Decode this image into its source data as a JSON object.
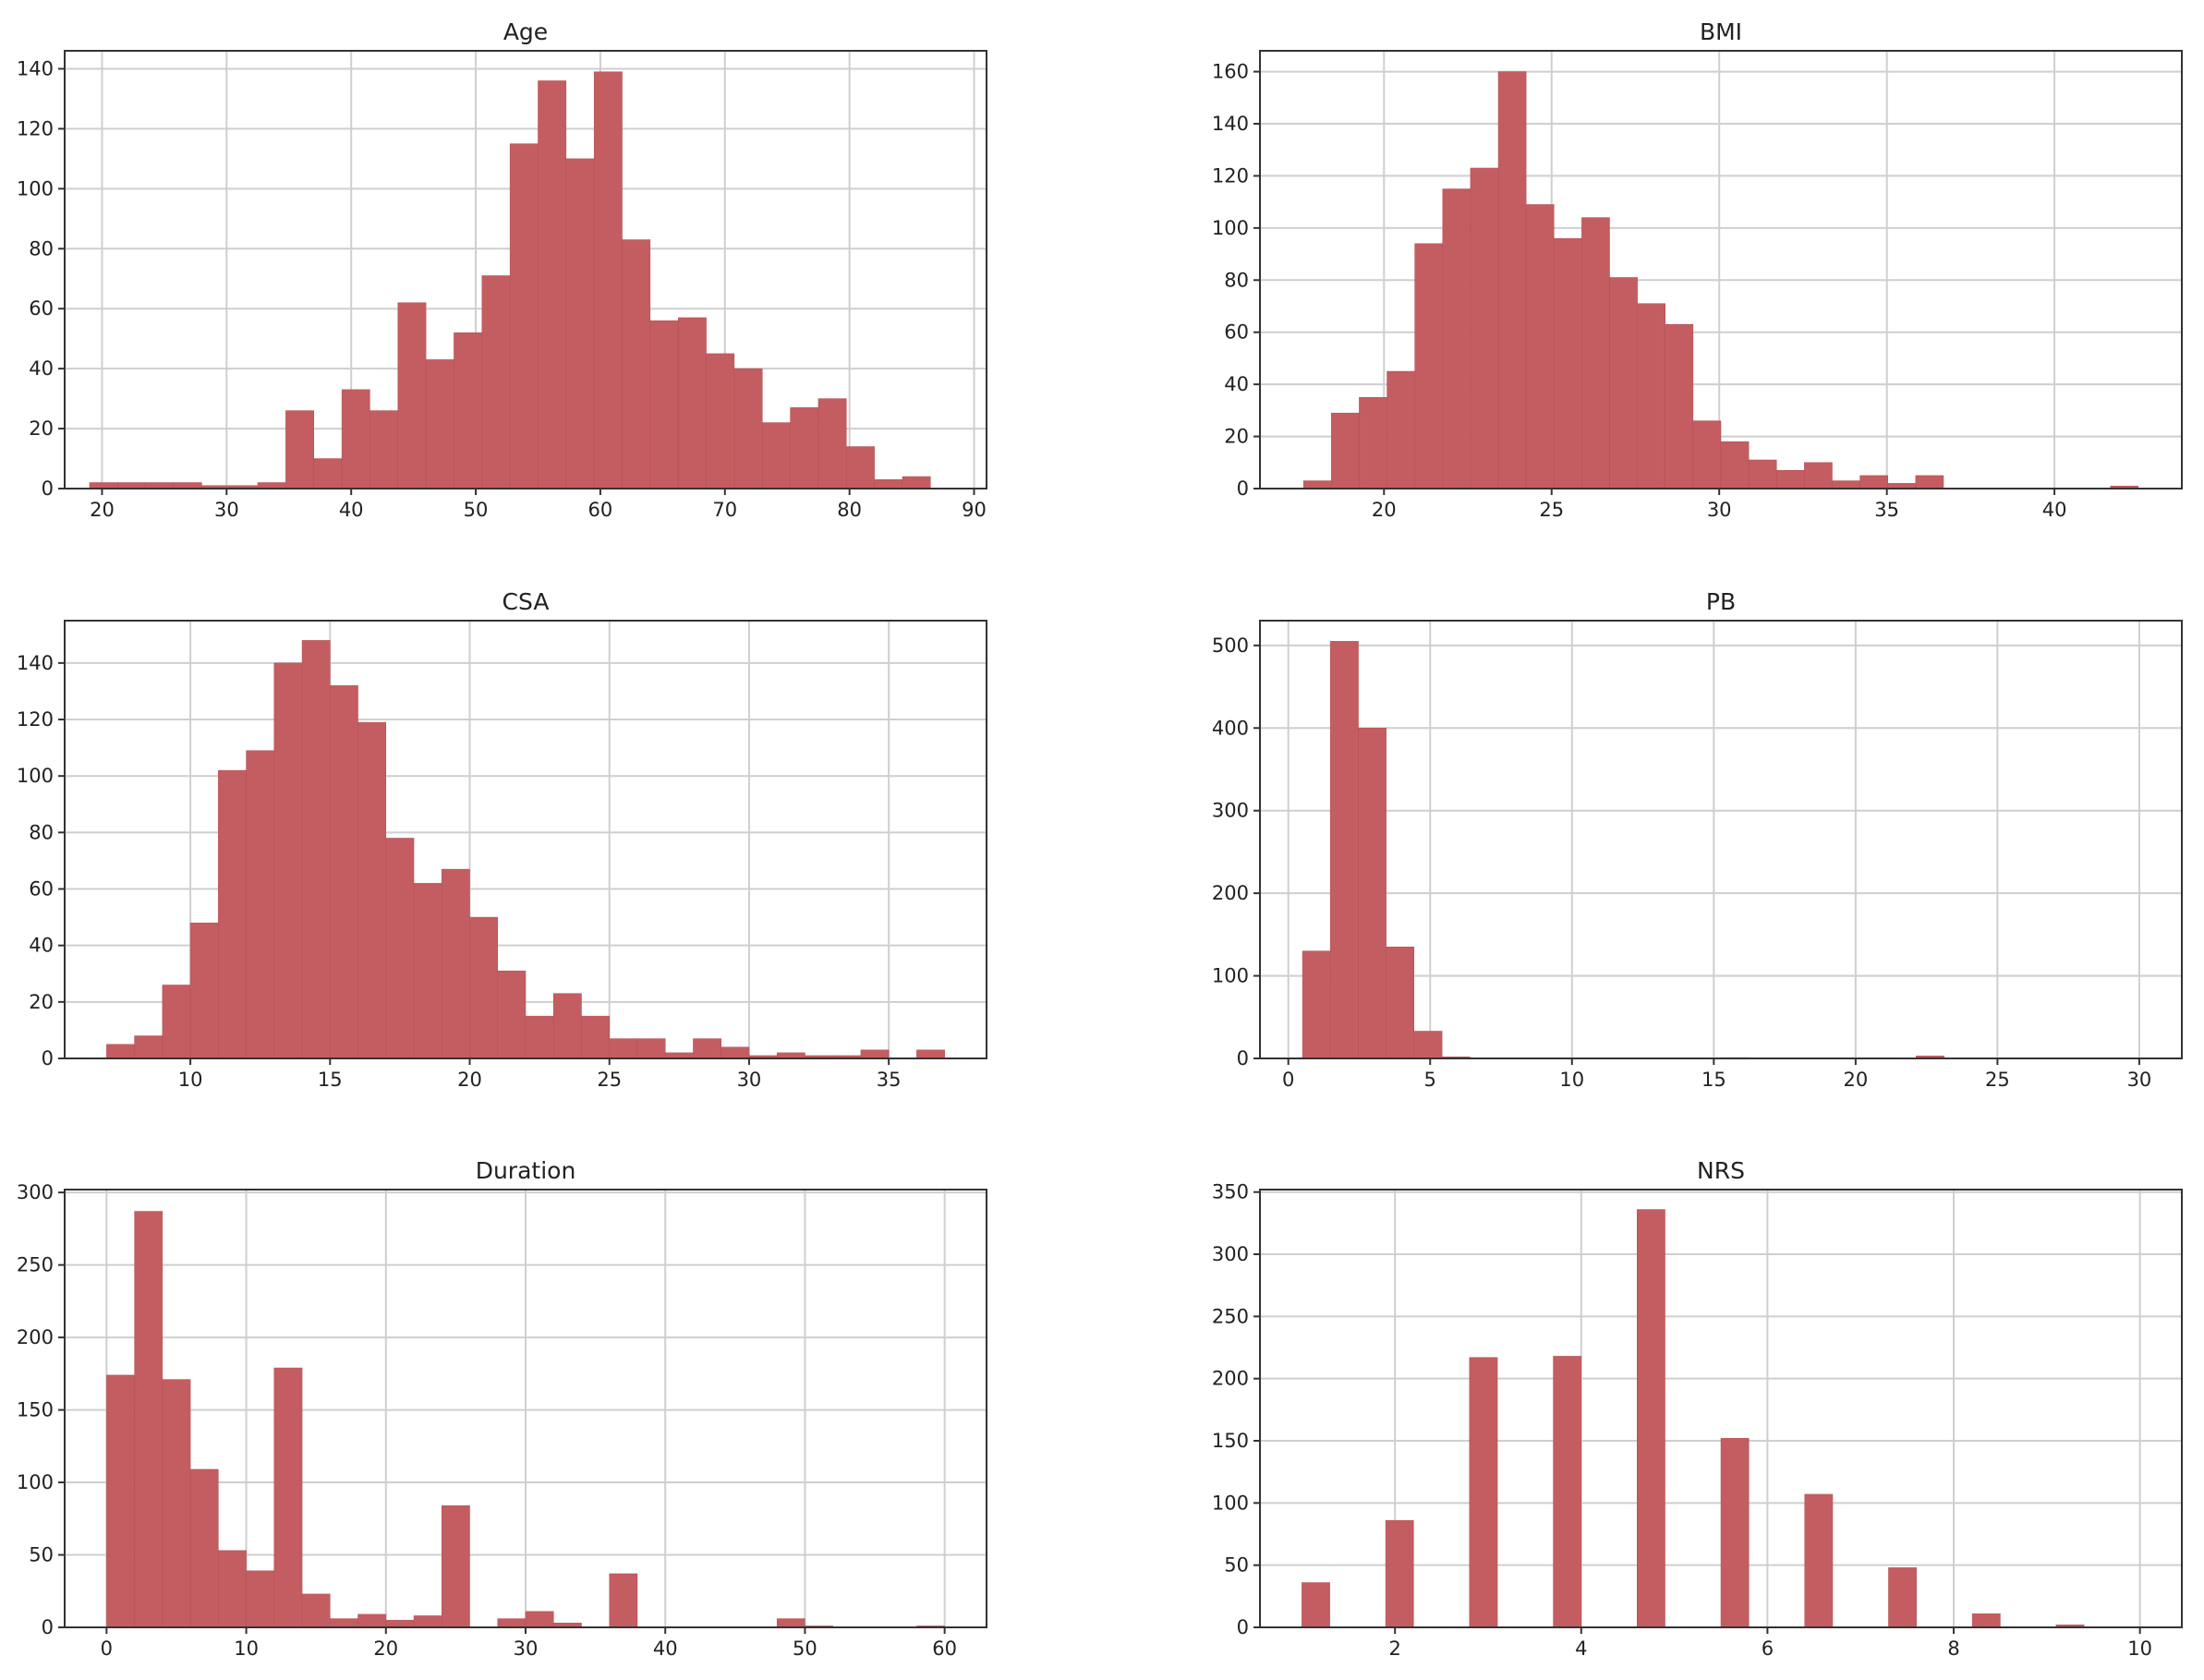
{
  "style": {
    "bar_color": "#c45d61",
    "bar_edge": "#b24e52",
    "grid_color": "#cfcfcf"
  },
  "chart_data": [
    {
      "type": "bar",
      "title": "Age",
      "bin_edges": [
        19,
        21.25,
        23.5,
        25.75,
        28,
        30.25,
        32.5,
        34.75,
        37,
        39.25,
        41.5,
        43.75,
        46,
        48.25,
        50.5,
        52.75,
        55,
        57.25,
        59.5,
        61.75,
        64,
        66.25,
        68.5,
        70.75,
        73,
        75.25,
        77.5,
        79.75,
        82,
        84.25,
        86.5
      ],
      "values": [
        2,
        2,
        2,
        2,
        1,
        1,
        2,
        26,
        10,
        33,
        26,
        62,
        43,
        52,
        71,
        115,
        136,
        110,
        139,
        83,
        56,
        57,
        45,
        40,
        22,
        27,
        30,
        14,
        3,
        4
      ],
      "xlim": [
        17,
        91
      ],
      "ylim": [
        0,
        146
      ],
      "xticks": [
        20,
        30,
        40,
        50,
        60,
        70,
        80,
        90
      ],
      "yticks": [
        0,
        20,
        40,
        60,
        80,
        100,
        120,
        140
      ],
      "grid": true
    },
    {
      "type": "bar",
      "title": "BMI",
      "bin_edges": [
        17.6,
        18.43,
        19.26,
        20.09,
        20.92,
        21.75,
        22.58,
        23.41,
        24.24,
        25.07,
        25.9,
        26.73,
        27.56,
        28.39,
        29.22,
        30.05,
        30.88,
        31.71,
        32.54,
        33.37,
        34.2,
        35.03,
        35.86,
        36.69,
        37.52,
        38.35,
        39.18,
        40.01,
        40.84,
        41.67,
        42.5
      ],
      "values": [
        3,
        29,
        35,
        45,
        94,
        115,
        123,
        160,
        109,
        96,
        104,
        81,
        71,
        63,
        26,
        18,
        11,
        7,
        10,
        3,
        5,
        2,
        5,
        0,
        0,
        0,
        0,
        0,
        0,
        1
      ],
      "xlim": [
        16.3,
        43.8
      ],
      "ylim": [
        0,
        168
      ],
      "xticks": [
        20,
        25,
        30,
        35,
        40
      ],
      "yticks": [
        0,
        20,
        40,
        60,
        80,
        100,
        120,
        140,
        160
      ],
      "grid": true
    },
    {
      "type": "bar",
      "title": "CSA",
      "bin_edges": [
        7,
        8,
        9,
        10,
        11,
        12,
        13,
        14,
        15,
        16,
        17,
        18,
        19,
        20,
        21,
        22,
        23,
        24,
        25,
        26,
        27,
        28,
        29,
        30,
        31,
        32,
        33,
        34,
        35,
        36,
        37
      ],
      "values": [
        5,
        8,
        26,
        48,
        102,
        109,
        140,
        148,
        132,
        119,
        78,
        62,
        67,
        50,
        31,
        15,
        23,
        15,
        7,
        7,
        2,
        7,
        4,
        1,
        2,
        1,
        1,
        3,
        0,
        3
      ],
      "xlim": [
        5.5,
        38.5
      ],
      "ylim": [
        0,
        155
      ],
      "xticks": [
        10,
        15,
        20,
        25,
        30,
        35
      ],
      "yticks": [
        0,
        20,
        40,
        60,
        80,
        100,
        120,
        140
      ],
      "grid": true
    },
    {
      "type": "bar",
      "title": "PB",
      "bin_edges": [
        0.5,
        1.48,
        2.47,
        3.45,
        4.43,
        5.42,
        6.4,
        7.38,
        8.37,
        9.35,
        10.33,
        11.32,
        12.3,
        13.28,
        14.27,
        15.25,
        16.23,
        17.22,
        18.2,
        19.18,
        20.17,
        21.15,
        22.13,
        23.12,
        24.1,
        25.08,
        26.07,
        27.05,
        28.03,
        29.02,
        30
      ],
      "values": [
        130,
        505,
        400,
        135,
        33,
        2,
        0,
        0,
        0,
        0,
        0,
        0,
        0,
        0,
        0,
        1,
        0,
        0,
        0,
        0,
        0,
        0,
        3,
        0,
        0,
        0,
        0,
        0,
        0,
        0
      ],
      "xlim": [
        -1,
        31.5
      ],
      "ylim": [
        0,
        530
      ],
      "xticks": [
        0,
        5,
        10,
        15,
        20,
        25,
        30
      ],
      "yticks": [
        0,
        100,
        200,
        300,
        400,
        500
      ],
      "grid": true
    },
    {
      "type": "bar",
      "title": "Duration",
      "bin_edges": [
        0,
        2,
        4,
        6,
        8,
        10,
        12,
        14,
        16,
        18,
        20,
        22,
        24,
        26,
        28,
        30,
        32,
        34,
        36,
        38,
        40,
        42,
        44,
        46,
        48,
        50,
        52,
        54,
        56,
        58,
        60
      ],
      "values": [
        174,
        287,
        171,
        109,
        53,
        39,
        179,
        23,
        6,
        9,
        5,
        8,
        84,
        0,
        6,
        11,
        3,
        0,
        37,
        0,
        0,
        0,
        0,
        0,
        6,
        1,
        0,
        0,
        0,
        1
      ],
      "xlim": [
        -3,
        63
      ],
      "ylim": [
        0,
        302
      ],
      "xticks": [
        0,
        10,
        20,
        30,
        40,
        50,
        60
      ],
      "yticks": [
        0,
        50,
        100,
        150,
        200,
        250,
        300
      ],
      "grid": true
    },
    {
      "type": "bar",
      "title": "NRS",
      "bin_edges": [
        1,
        1.3,
        1.6,
        1.9,
        2.2,
        2.5,
        2.8,
        3.1,
        3.4,
        3.7,
        4,
        4.3,
        4.6,
        4.9,
        5.2,
        5.5,
        5.8,
        6.1,
        6.4,
        6.7,
        7,
        7.3,
        7.6,
        7.9,
        8.2,
        8.5,
        8.8,
        9.1,
        9.4,
        9.7,
        10
      ],
      "values": [
        36,
        0,
        0,
        86,
        0,
        0,
        217,
        0,
        0,
        218,
        0,
        0,
        336,
        0,
        0,
        152,
        0,
        0,
        107,
        0,
        0,
        48,
        0,
        0,
        11,
        0,
        0,
        2,
        0,
        0
      ],
      "xlim": [
        0.55,
        10.45
      ],
      "ylim": [
        0,
        352
      ],
      "xticks": [
        2,
        4,
        6,
        8,
        10
      ],
      "yticks": [
        0,
        50,
        100,
        150,
        200,
        250,
        300,
        350
      ],
      "grid": true
    }
  ]
}
